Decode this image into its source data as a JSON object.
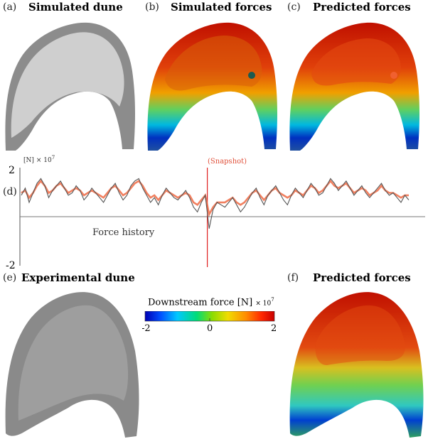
{
  "panels": {
    "a": {
      "letter": "(a)",
      "title": "Simulated dune"
    },
    "b": {
      "letter": "(b)",
      "title": "Simulated forces"
    },
    "c": {
      "letter": "(c)",
      "title": "Predicted forces"
    },
    "d": {
      "letter": "(d)"
    },
    "e": {
      "letter": "(e)",
      "title": "Experimental dune"
    },
    "f": {
      "letter": "(f)",
      "title": "Predicted forces"
    }
  },
  "colorbar": {
    "label": "Downstream force [N]",
    "multiplier": "× 10",
    "exponent": "7",
    "ticks": [
      "-2",
      "0",
      "2"
    ],
    "colormap": [
      "#0000b4",
      "#0050ff",
      "#00c8ff",
      "#00dc78",
      "#8cdc00",
      "#f0dc00",
      "#ff8c00",
      "#ff2800",
      "#c80000"
    ]
  },
  "chart_data": {
    "type": "line",
    "title": "",
    "annotation": "Force history",
    "snapshot_label": "(Snapshot)",
    "yunit": "[N]",
    "ymultiplier": "× 10",
    "yexponent": "7",
    "ylim": [
      -2,
      2
    ],
    "yticks": [
      "2",
      "-2"
    ],
    "xlim": [
      0,
      100
    ],
    "snapshot_x": 48,
    "series": [
      {
        "color": "#555555",
        "values": [
          0.9,
          1.2,
          0.6,
          1.0,
          1.4,
          1.6,
          1.3,
          0.8,
          1.1,
          1.3,
          1.5,
          1.2,
          0.9,
          1.0,
          1.3,
          1.1,
          0.7,
          0.9,
          1.2,
          1.0,
          0.8,
          0.6,
          0.9,
          1.2,
          1.4,
          1.0,
          0.7,
          0.9,
          1.3,
          1.5,
          1.6,
          1.2,
          0.9,
          0.6,
          0.8,
          0.5,
          0.9,
          1.2,
          1.0,
          0.8,
          0.7,
          0.9,
          1.1,
          0.8,
          0.4,
          0.2,
          0.6,
          0.9,
          -0.5,
          0.3,
          0.6,
          0.5,
          0.4,
          0.6,
          0.8,
          0.5,
          0.2,
          0.4,
          0.7,
          1.0,
          1.2,
          0.8,
          0.5,
          0.9,
          1.1,
          1.3,
          1.0,
          0.7,
          0.5,
          0.9,
          1.2,
          1.0,
          0.8,
          1.1,
          1.4,
          1.2,
          0.9,
          1.0,
          1.3,
          1.6,
          1.4,
          1.1,
          1.3,
          1.5,
          1.2,
          0.9,
          1.1,
          1.3,
          1.0,
          0.8,
          1.0,
          1.2,
          1.4,
          1.1,
          0.9,
          1.0,
          0.8,
          0.6,
          0.9,
          0.7
        ]
      },
      {
        "color": "#ee6a44",
        "values": [
          1.0,
          1.1,
          0.8,
          1.0,
          1.3,
          1.5,
          1.3,
          1.0,
          1.1,
          1.3,
          1.4,
          1.2,
          1.0,
          1.1,
          1.2,
          1.1,
          0.9,
          1.0,
          1.1,
          1.0,
          0.9,
          0.8,
          1.0,
          1.2,
          1.3,
          1.1,
          0.9,
          1.0,
          1.2,
          1.4,
          1.5,
          1.3,
          1.0,
          0.8,
          0.9,
          0.7,
          0.9,
          1.1,
          1.0,
          0.9,
          0.8,
          0.9,
          1.0,
          0.9,
          0.6,
          0.5,
          0.7,
          0.9,
          0.1,
          0.4,
          0.6,
          0.6,
          0.6,
          0.7,
          0.8,
          0.6,
          0.5,
          0.6,
          0.8,
          1.0,
          1.1,
          0.9,
          0.7,
          0.9,
          1.1,
          1.2,
          1.0,
          0.9,
          0.8,
          0.9,
          1.1,
          1.0,
          0.9,
          1.1,
          1.3,
          1.2,
          1.0,
          1.1,
          1.3,
          1.5,
          1.3,
          1.2,
          1.3,
          1.4,
          1.2,
          1.0,
          1.1,
          1.2,
          1.1,
          0.9,
          1.0,
          1.1,
          1.3,
          1.1,
          1.0,
          1.0,
          0.9,
          0.8,
          0.9,
          0.9
        ]
      }
    ]
  }
}
